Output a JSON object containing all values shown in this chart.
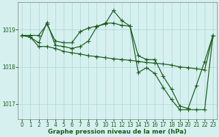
{
  "xlabel": "Graphe pression niveau de la mer (hPa)",
  "xlim": [
    -0.5,
    23.5
  ],
  "ylim": [
    1016.6,
    1019.75
  ],
  "yticks": [
    1017,
    1018,
    1019
  ],
  "xticks": [
    0,
    1,
    2,
    3,
    4,
    5,
    6,
    7,
    8,
    9,
    10,
    11,
    12,
    13,
    14,
    15,
    16,
    17,
    18,
    19,
    20,
    21,
    22,
    23
  ],
  "bg_color": "#d6f0f0",
  "grid_color": "#b0d8d8",
  "line_color": "#1a5c1a",
  "line1": [
    1018.85,
    1018.85,
    1018.85,
    1019.15,
    1018.7,
    1018.65,
    1018.65,
    1018.95,
    1019.05,
    1019.1,
    1019.15,
    1019.52,
    1019.25,
    1019.1,
    1018.3,
    1018.2,
    1018.2,
    1017.75,
    1017.4,
    1016.95,
    1016.88,
    1017.5,
    1018.15,
    1018.85
  ],
  "line2": [
    1018.85,
    1018.8,
    1018.65,
    1019.2,
    1018.58,
    1018.55,
    1018.5,
    1018.55,
    1018.7,
    1019.08,
    1019.18,
    1019.18,
    1019.12,
    1019.1,
    1017.85,
    1017.98,
    1017.82,
    1017.45,
    1017.12,
    1016.85,
    1016.85,
    1016.85,
    1016.85,
    1018.85
  ],
  "line3": [
    1018.85,
    1018.8,
    1018.55,
    1018.55,
    1018.5,
    1018.42,
    1018.38,
    1018.35,
    1018.3,
    1018.28,
    1018.25,
    1018.22,
    1018.2,
    1018.18,
    1018.15,
    1018.12,
    1018.1,
    1018.08,
    1018.05,
    1018.0,
    1017.98,
    1017.95,
    1017.92,
    1018.85
  ],
  "markersize": 2.2,
  "linewidth": 0.9,
  "label_fontsize": 6.5,
  "tick_fontsize": 5.5
}
